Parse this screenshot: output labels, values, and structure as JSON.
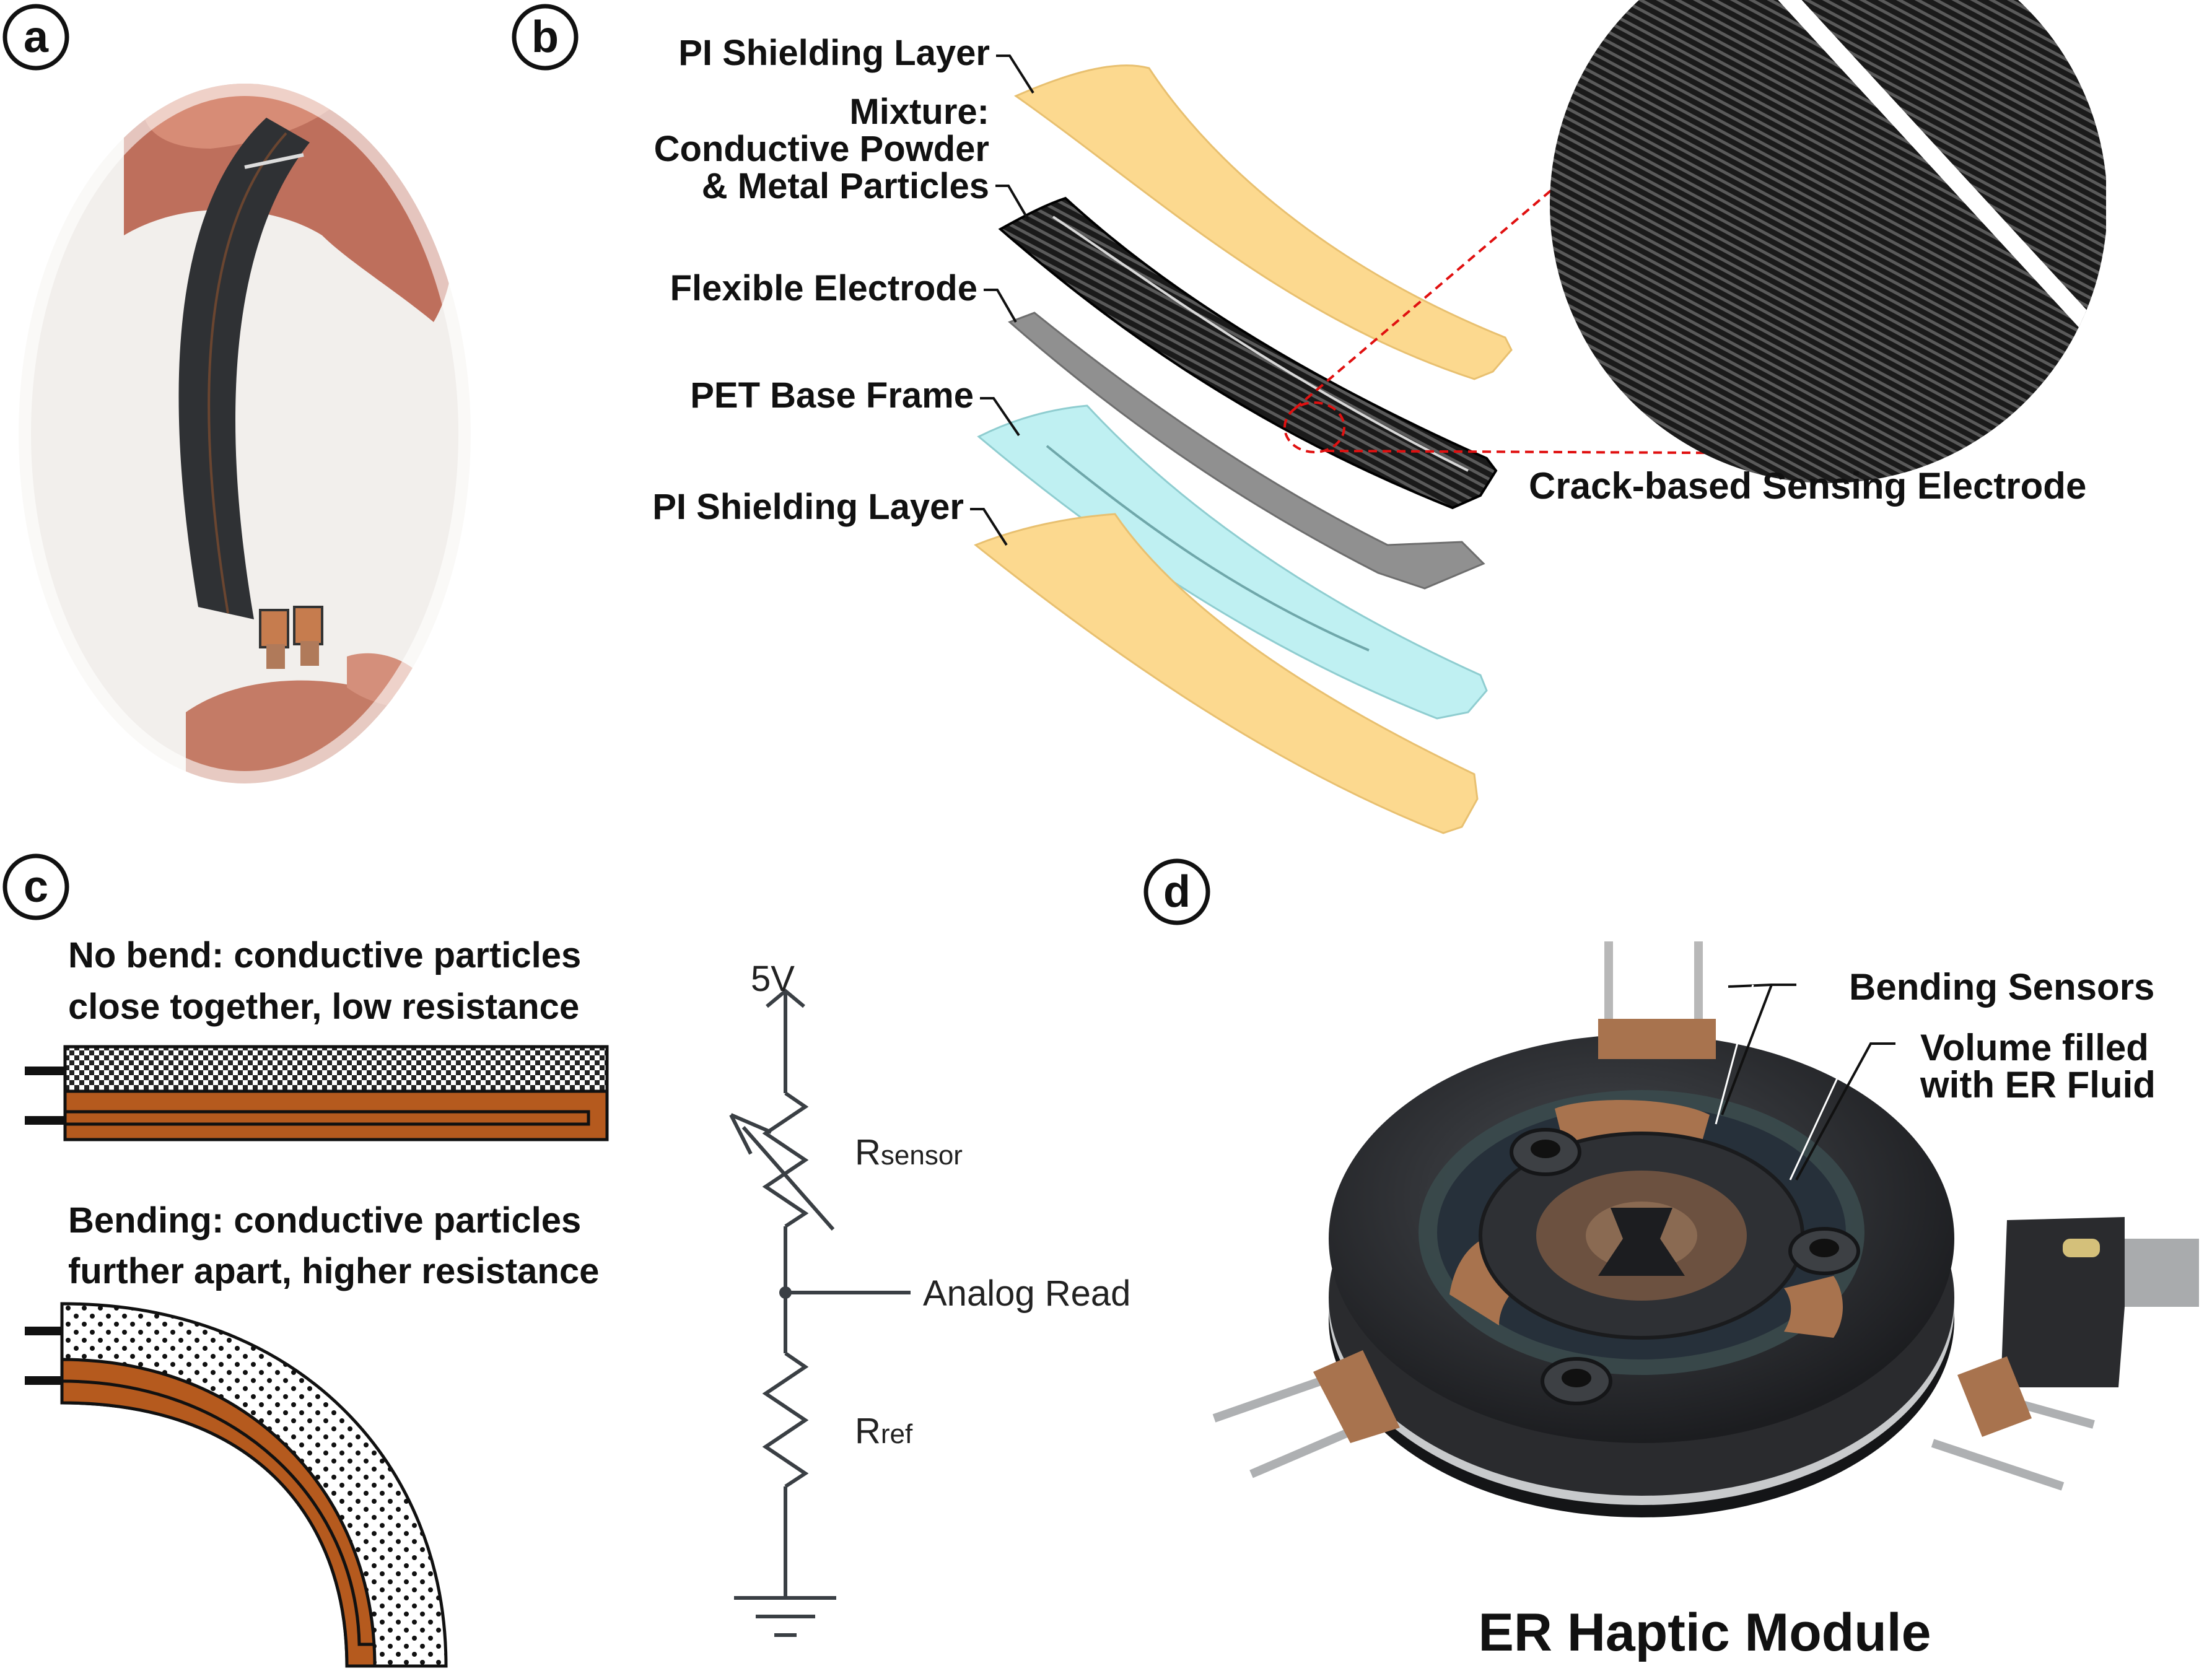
{
  "panels": {
    "a": {
      "letter": "a"
    },
    "b": {
      "letter": "b",
      "labels": {
        "pi_top": "PI Shielding Layer",
        "mixture_1": "Mixture:",
        "mixture_2": "Conductive Powder",
        "mixture_3": "& Metal Particles",
        "flexible_electrode": "Flexible Electrode",
        "pet_base": "PET Base Frame",
        "pi_bottom": "PI Shielding Layer",
        "crack_sensing": "Crack-based Sensing Electrode"
      }
    },
    "c": {
      "letter": "c",
      "no_bend_1": "No bend: conductive particles",
      "no_bend_2": "close together, low resistance",
      "bending_1": "Bending: conductive particles",
      "bending_2": "further apart, higher resistance",
      "circuit": {
        "supply": "5V",
        "r_sensor_main": "R",
        "r_sensor_sub": "sensor",
        "analog_read": "Analog Read",
        "r_ref_main": "R",
        "r_ref_sub": "ref"
      }
    },
    "d": {
      "letter": "d",
      "bending_sensors": "Bending Sensors",
      "volume_1": "Volume filled",
      "volume_2": "with ER Fluid",
      "caption": "ER Haptic Module"
    }
  },
  "colors": {
    "pi_layer": "#fcd98f",
    "pet_layer": "#bff0f2",
    "electrode": "#8c8c8c",
    "sensor_black": "#111111",
    "copper": "#b55a1e",
    "crack_red": "#e01010"
  }
}
